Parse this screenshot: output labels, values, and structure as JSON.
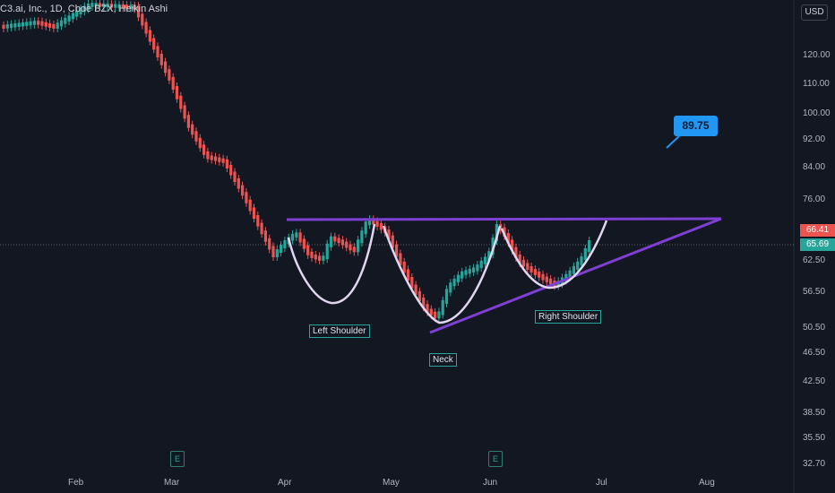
{
  "header": {
    "symbol_title": "C3.ai, Inc., 1D, Cboe BZX, Heikin Ashi",
    "currency": "USD"
  },
  "price_axis": {
    "labels": [
      "120.00",
      "110.00",
      "100.00",
      "92.00",
      "84.00",
      "76.00",
      "62.50",
      "56.50",
      "50.50",
      "46.50",
      "42.50",
      "38.50",
      "35.50",
      "32.70"
    ],
    "current_price": "66.41",
    "close_price": "65.69",
    "current_color": "#ef5350",
    "close_color": "#26a69a"
  },
  "time_axis": {
    "months": [
      "Feb",
      "Mar",
      "Apr",
      "May",
      "Jun",
      "Jul",
      "Aug"
    ]
  },
  "annotations": {
    "target_value": "89.75",
    "left_shoulder": "Left Shoulder",
    "neck": "Neck",
    "right_shoulder": "Right Shoulder"
  },
  "earnings_markers": [
    "E",
    "E"
  ],
  "colors": {
    "up": "#26a69a",
    "down": "#ef5350",
    "pattern_line": "#7e3fd3",
    "arc": "#e1d5f0",
    "callout": "#2196f3",
    "background": "#131722"
  }
}
